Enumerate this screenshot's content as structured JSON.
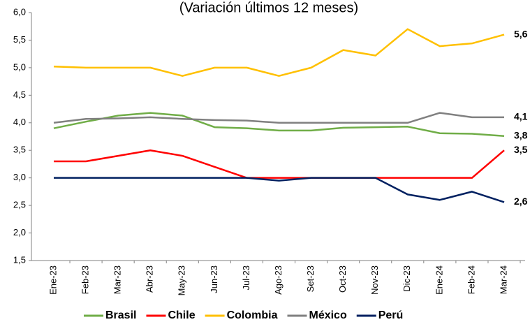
{
  "chart_data": {
    "type": "line",
    "subtitle": "(Variación últimos 12 meses)",
    "categories": [
      "Ene-23",
      "Feb-23",
      "Mar-23",
      "Abr-23",
      "May-23",
      "Jun-23",
      "Jul-23",
      "Ago-23",
      "Set-23",
      "Oct-23",
      "Nov-23",
      "Dic-23",
      "Ene-24",
      "Feb-24",
      "Mar-24"
    ],
    "ylim": [
      1.5,
      6.0
    ],
    "yticks": [
      {
        "value": 1.5,
        "label": "1,5"
      },
      {
        "value": 2.0,
        "label": "2,0"
      },
      {
        "value": 2.5,
        "label": "2,5"
      },
      {
        "value": 3.0,
        "label": "3,0"
      },
      {
        "value": 3.5,
        "label": "3,5"
      },
      {
        "value": 4.0,
        "label": "4,0"
      },
      {
        "value": 4.5,
        "label": "4,5"
      },
      {
        "value": 5.0,
        "label": "5,0"
      },
      {
        "value": 5.5,
        "label": "5,5"
      },
      {
        "value": 6.0,
        "label": "6,0"
      }
    ],
    "grid": false,
    "legend": "bottom",
    "series": [
      {
        "name": "Brasil",
        "color": "#70ad47",
        "values": [
          3.9,
          4.02,
          4.13,
          4.18,
          4.13,
          3.92,
          3.9,
          3.86,
          3.86,
          3.91,
          3.92,
          3.93,
          3.81,
          3.8,
          3.76
        ],
        "value_labels": [
          null,
          null,
          null,
          null,
          null,
          null,
          null,
          null,
          null,
          null,
          null,
          null,
          null,
          null,
          "3,8"
        ]
      },
      {
        "name": "Chile",
        "color": "#ff0000",
        "values": [
          3.3,
          3.3,
          3.4,
          3.5,
          3.4,
          3.2,
          3.0,
          3.0,
          3.0,
          3.0,
          3.0,
          3.0,
          3.0,
          3.0,
          3.5
        ],
        "value_labels": [
          null,
          null,
          null,
          null,
          null,
          null,
          null,
          null,
          null,
          null,
          null,
          null,
          null,
          null,
          "3,5"
        ]
      },
      {
        "name": "Colombia",
        "color": "#ffc000",
        "values": [
          5.02,
          5.0,
          5.0,
          5.0,
          4.85,
          5.0,
          5.0,
          4.85,
          5.0,
          5.32,
          5.22,
          5.7,
          5.39,
          5.44,
          5.6
        ],
        "value_labels": [
          null,
          null,
          null,
          null,
          null,
          null,
          null,
          null,
          null,
          null,
          null,
          null,
          null,
          null,
          "5,6"
        ]
      },
      {
        "name": "México",
        "color": "#808080",
        "values": [
          4.0,
          4.07,
          4.08,
          4.1,
          4.07,
          4.05,
          4.04,
          4.0,
          4.0,
          4.0,
          4.0,
          4.0,
          4.18,
          4.1,
          4.1
        ],
        "value_labels": [
          null,
          null,
          null,
          null,
          null,
          null,
          null,
          null,
          null,
          null,
          null,
          null,
          null,
          null,
          "4,1"
        ]
      },
      {
        "name": "Perú",
        "color": "#002060",
        "values": [
          3.0,
          3.0,
          3.0,
          3.0,
          3.0,
          3.0,
          3.0,
          2.95,
          3.0,
          3.0,
          3.0,
          2.7,
          2.6,
          2.75,
          2.56
        ],
        "value_labels": [
          null,
          null,
          null,
          null,
          null,
          null,
          null,
          null,
          null,
          null,
          null,
          null,
          null,
          null,
          "2,6"
        ]
      }
    ]
  }
}
